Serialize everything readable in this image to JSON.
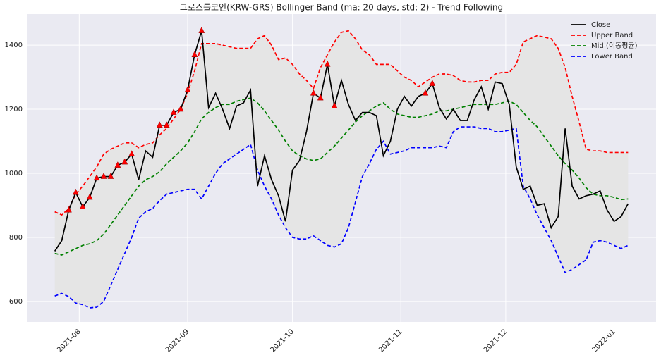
{
  "chart_data": {
    "type": "line",
    "title": "그로스톨코인(KRW-GRS) Bollinger Band (ma: 20 days, std: 2) - Trend Following",
    "x": [
      -7,
      -5,
      -3,
      -1,
      1,
      3,
      5,
      7,
      9,
      11,
      13,
      15,
      17,
      19,
      21,
      23,
      25,
      27,
      29,
      31,
      33,
      35,
      37,
      39,
      41,
      43,
      45,
      47,
      49,
      51,
      53,
      55,
      57,
      59,
      61,
      63,
      65,
      67,
      69,
      71,
      73,
      75,
      77,
      79,
      81,
      83,
      85,
      87,
      89,
      91,
      93,
      95,
      97,
      99,
      101,
      103,
      105,
      107,
      109,
      111,
      113,
      115,
      117,
      119,
      121,
      123,
      125,
      127,
      129,
      131,
      133,
      135,
      137,
      139,
      141,
      143,
      145,
      147,
      149,
      151,
      153,
      155,
      157
    ],
    "series": [
      {
        "name": "Close",
        "color": "#000000",
        "dash": false,
        "values": [
          757,
          790,
          885,
          940,
          895,
          925,
          985,
          990,
          990,
          1025,
          1035,
          1060,
          980,
          1070,
          1050,
          1150,
          1150,
          1190,
          1200,
          1260,
          1370,
          1445,
          1205,
          1250,
          1200,
          1140,
          1210,
          1220,
          1260,
          960,
          1055,
          980,
          930,
          850,
          1010,
          1040,
          1130,
          1250,
          1235,
          1340,
          1210,
          1290,
          1215,
          1165,
          1190,
          1190,
          1180,
          1055,
          1100,
          1200,
          1240,
          1210,
          1240,
          1250,
          1280,
          1205,
          1170,
          1200,
          1165,
          1165,
          1230,
          1270,
          1200,
          1285,
          1280,
          1215,
          1020,
          950,
          960,
          900,
          905,
          830,
          865,
          1140,
          960,
          920,
          930,
          935,
          945,
          885,
          850,
          865,
          905
        ]
      },
      {
        "name": "Upper Band",
        "color": "#ff0000",
        "dash": true,
        "values": [
          880,
          870,
          890,
          935,
          960,
          990,
          1020,
          1060,
          1075,
          1085,
          1095,
          1095,
          1080,
          1090,
          1095,
          1120,
          1140,
          1170,
          1200,
          1250,
          1320,
          1405,
          1405,
          1405,
          1400,
          1395,
          1390,
          1390,
          1390,
          1420,
          1430,
          1400,
          1355,
          1360,
          1340,
          1310,
          1290,
          1265,
          1330,
          1370,
          1410,
          1440,
          1445,
          1420,
          1385,
          1370,
          1340,
          1340,
          1340,
          1320,
          1300,
          1290,
          1270,
          1285,
          1300,
          1310,
          1310,
          1305,
          1290,
          1285,
          1285,
          1290,
          1290,
          1310,
          1315,
          1315,
          1340,
          1410,
          1420,
          1430,
          1425,
          1420,
          1390,
          1330,
          1240,
          1160,
          1075,
          1070,
          1070,
          1065,
          1065,
          1065,
          1065
        ]
      },
      {
        "name": "Mid (이동평균)",
        "color": "#008000",
        "dash": true,
        "values": [
          750,
          745,
          755,
          765,
          775,
          780,
          790,
          810,
          840,
          870,
          900,
          930,
          960,
          980,
          990,
          1005,
          1030,
          1050,
          1070,
          1095,
          1130,
          1170,
          1190,
          1205,
          1215,
          1215,
          1225,
          1230,
          1235,
          1220,
          1195,
          1165,
          1135,
          1100,
          1070,
          1055,
          1045,
          1040,
          1045,
          1065,
          1085,
          1110,
          1135,
          1160,
          1180,
          1195,
          1210,
          1220,
          1200,
          1185,
          1180,
          1175,
          1175,
          1180,
          1185,
          1195,
          1195,
          1200,
          1205,
          1210,
          1215,
          1215,
          1215,
          1215,
          1220,
          1225,
          1215,
          1190,
          1165,
          1145,
          1115,
          1085,
          1055,
          1030,
          1010,
          985,
          955,
          935,
          930,
          930,
          925,
          918,
          920
        ]
      },
      {
        "name": "Lower Band",
        "color": "#0000ff",
        "dash": true,
        "values": [
          617,
          625,
          615,
          595,
          590,
          580,
          582,
          600,
          650,
          700,
          750,
          800,
          860,
          880,
          890,
          915,
          935,
          940,
          945,
          950,
          950,
          920,
          960,
          1000,
          1030,
          1045,
          1060,
          1075,
          1090,
          1010,
          960,
          920,
          870,
          830,
          800,
          795,
          795,
          805,
          790,
          775,
          770,
          780,
          830,
          910,
          990,
          1030,
          1075,
          1100,
          1060,
          1065,
          1070,
          1080,
          1080,
          1080,
          1080,
          1085,
          1080,
          1130,
          1145,
          1145,
          1145,
          1140,
          1140,
          1130,
          1130,
          1135,
          1140,
          960,
          920,
          870,
          830,
          790,
          740,
          690,
          700,
          715,
          730,
          785,
          790,
          785,
          775,
          765,
          775
        ]
      },
      {
        "color": "#ff0000",
        "marker": "triangle",
        "values": [
          null,
          null,
          885,
          940,
          895,
          925,
          985,
          990,
          990,
          1025,
          1035,
          1060,
          null,
          null,
          null,
          1150,
          1150,
          1190,
          1200,
          1260,
          1370,
          1445,
          null,
          null,
          null,
          null,
          null,
          null,
          null,
          null,
          null,
          null,
          null,
          null,
          null,
          null,
          null,
          1250,
          1235,
          1340,
          1210,
          null,
          null,
          null,
          null,
          null,
          null,
          null,
          null,
          null,
          null,
          null,
          null,
          1250,
          1280,
          null,
          null,
          null,
          null,
          null,
          null,
          null,
          null,
          null,
          null,
          null,
          null,
          null,
          null,
          null,
          null,
          null,
          null,
          null,
          null,
          null,
          null,
          null,
          null,
          null,
          null,
          null,
          null
        ]
      }
    ],
    "band_fill": "#e5e5e5",
    "xlim": [
      -15,
      165
    ],
    "xticks": [
      {
        "value": 0,
        "label": "2021-08"
      },
      {
        "value": 31,
        "label": "2021-09"
      },
      {
        "value": 61,
        "label": "2021-10"
      },
      {
        "value": 92,
        "label": "2021-11"
      },
      {
        "value": 122,
        "label": "2021-12"
      },
      {
        "value": 153,
        "label": "2022-01"
      }
    ],
    "ylim": [
      536,
      1497
    ],
    "yticks": [
      600,
      800,
      1000,
      1200,
      1400
    ],
    "grid": true,
    "legend": "upper-right"
  }
}
